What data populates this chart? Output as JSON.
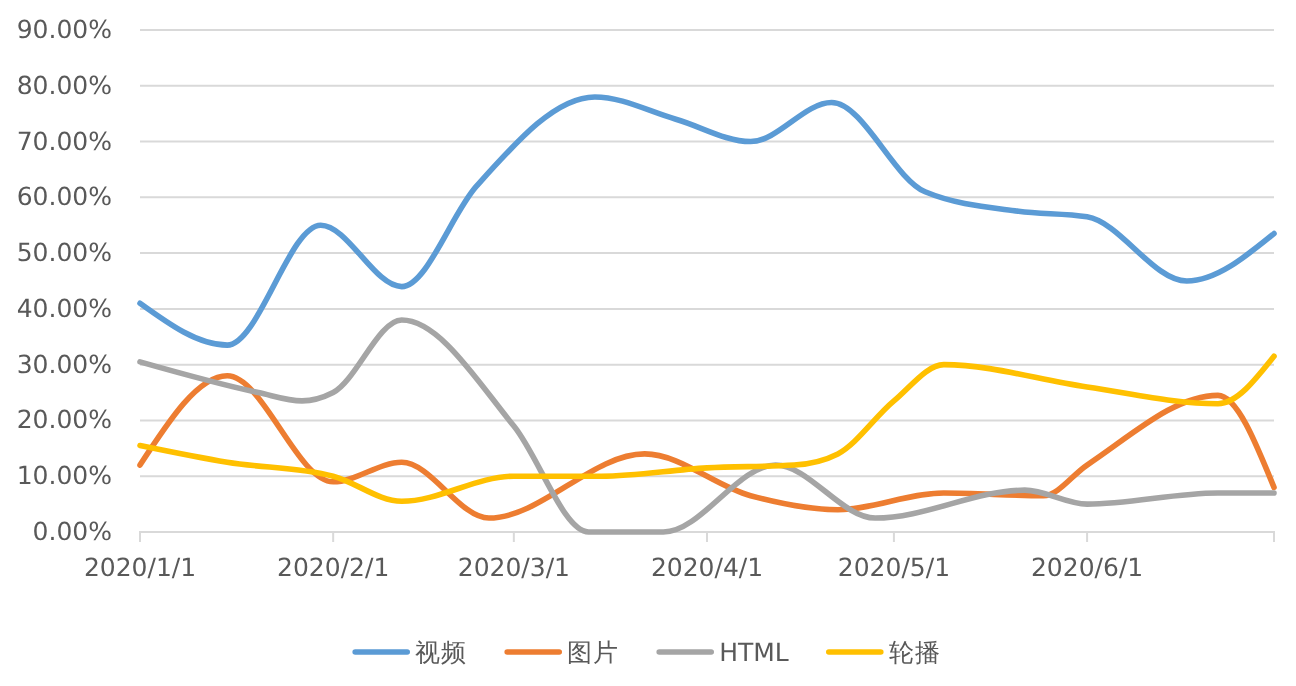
{
  "chart_data": {
    "type": "line",
    "xlim": [
      "2020-01-01",
      "2020-07-01"
    ],
    "xticks": [
      {
        "value": "2020-01-01",
        "label": "2020/1/1"
      },
      {
        "value": "2020-02-01",
        "label": "2020/2/1"
      },
      {
        "value": "2020-03-01",
        "label": "2020/3/1"
      },
      {
        "value": "2020-04-01",
        "label": "2020/4/1"
      },
      {
        "value": "2020-05-01",
        "label": "2020/5/1"
      },
      {
        "value": "2020-06-01",
        "label": "2020/6/1"
      },
      {
        "value": "2020-07-01",
        "label": null
      }
    ],
    "ylim": [
      0,
      90
    ],
    "yticks": [
      {
        "value": 0,
        "label": "0.00%"
      },
      {
        "value": 10,
        "label": "10.00%"
      },
      {
        "value": 20,
        "label": "20.00%"
      },
      {
        "value": 30,
        "label": "30.00%"
      },
      {
        "value": 40,
        "label": "40.00%"
      },
      {
        "value": 50,
        "label": "50.00%"
      },
      {
        "value": 60,
        "label": "60.00%"
      },
      {
        "value": 70,
        "label": "70.00%"
      },
      {
        "value": 80,
        "label": "80.00%"
      },
      {
        "value": 90,
        "label": "90.00%"
      }
    ],
    "grid": "y",
    "legend": "bottom",
    "marker": "none",
    "line_style": "solid",
    "series": [
      {
        "name": "视频",
        "color": "#5b9bd5",
        "x": [
          "2020-01-01",
          "2020-01-15",
          "2020-01-30",
          "2020-02-12",
          "2020-02-24",
          "2020-03-14",
          "2020-03-27",
          "2020-04-08",
          "2020-04-21",
          "2020-05-06",
          "2020-05-21",
          "2020-06-01",
          "2020-06-17",
          "2020-07-01"
        ],
        "values": [
          41,
          33.5,
          55,
          44,
          62,
          78,
          74,
          70,
          77,
          61,
          57.5,
          56.5,
          45,
          53.5
        ]
      },
      {
        "name": "图片",
        "color": "#ed7d31",
        "x": [
          "2020-01-01",
          "2020-01-15",
          "2020-02-01",
          "2020-02-12",
          "2020-02-26",
          "2020-03-22",
          "2020-04-08",
          "2020-04-22",
          "2020-05-09",
          "2020-05-25",
          "2020-06-01",
          "2020-06-22",
          "2020-07-01"
        ],
        "values": [
          12,
          28,
          9,
          12.5,
          2.5,
          14,
          6.5,
          4,
          7,
          6.5,
          12,
          24.5,
          8
        ]
      },
      {
        "name": "HTML",
        "color": "#a5a5a5",
        "x": [
          "2020-01-01",
          "2020-01-20",
          "2020-01-27",
          "2020-02-01",
          "2020-02-12",
          "2020-03-01",
          "2020-03-13",
          "2020-03-25",
          "2020-04-12",
          "2020-04-28",
          "2020-05-22",
          "2020-06-01",
          "2020-06-22",
          "2020-07-01"
        ],
        "values": [
          30.5,
          25,
          23.5,
          25,
          38,
          19,
          0,
          0,
          12,
          2.5,
          7.5,
          5,
          7,
          7
        ]
      },
      {
        "name": "轮播",
        "color": "#ffc000",
        "x": [
          "2020-01-01",
          "2020-01-15",
          "2020-02-01",
          "2020-02-12",
          "2020-03-01",
          "2020-03-15",
          "2020-04-01",
          "2020-04-15",
          "2020-04-22",
          "2020-05-01",
          "2020-05-09",
          "2020-06-01",
          "2020-06-22",
          "2020-07-01"
        ],
        "values": [
          15.5,
          12.5,
          10,
          5.5,
          10,
          10,
          11.5,
          12,
          14,
          23.5,
          30,
          26,
          23,
          31.5
        ]
      }
    ]
  }
}
